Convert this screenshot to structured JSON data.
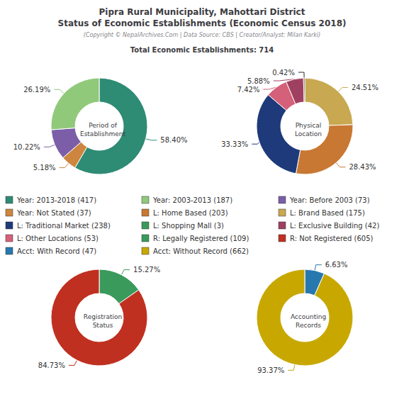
{
  "title": "Pipra Rural Municipality, Mahottari District\nStatus of Economic Establishments (Economic Census 2018)",
  "subtitle": "(Copyright © NepalArchives.Com | Data Source: CBS | Creator/Analyst: Milan Karki)",
  "annotations": [
    "Total Economic Establishments: 714"
  ],
  "legend_items": [
    [
      {
        "label": "Year: 2013-2018 (417)",
        "color": "#2e8b74"
      },
      {
        "label": "Year: Not Stated (37)",
        "color": "#cd853f"
      },
      {
        "label": "L: Traditional Market (238)",
        "color": "#1e3a7a"
      },
      {
        "label": "L: Other Locations (53)",
        "color": "#d4607a"
      },
      {
        "label": "Acct: With Record (47)",
        "color": "#2878b0"
      }
    ],
    [
      {
        "label": "Year: 2003-2013 (187)",
        "color": "#90c97a"
      },
      {
        "label": "L: Home Based (203)",
        "color": "#c87832"
      },
      {
        "label": "L: Shopping Mall (3)",
        "color": "#3a9a5c"
      },
      {
        "label": "R: Legally Registered (109)",
        "color": "#3a9a5c"
      },
      {
        "label": "Acct: Without Record (662)",
        "color": "#c8a800"
      }
    ],
    [
      {
        "label": "Year: Before 2003 (73)",
        "color": "#7b5ea7"
      },
      {
        "label": "L: Brand Based (175)",
        "color": "#c8a850"
      },
      {
        "label": "L: Exclusive Building (42)",
        "color": "#a04060"
      },
      {
        "label": "R: Not Registered (605)",
        "color": "#c03020"
      }
    ]
  ],
  "chart_data": [
    {
      "type": "pie",
      "title": "Period of\nEstablishment",
      "values": [
        58.4,
        5.18,
        10.22,
        26.19
      ],
      "value_labels": [
        "58.40%",
        "5.18%",
        "10.22%",
        "26.19%"
      ],
      "colors": [
        "#2e8b74",
        "#cd853f",
        "#7b5ea7",
        "#90c97a"
      ],
      "data_labels": true
    },
    {
      "type": "pie",
      "title": "Physical\nLocation",
      "values": [
        24.51,
        28.43,
        33.33,
        7.42,
        5.88,
        0.42
      ],
      "value_labels": [
        "24.51%",
        "28.43%",
        "33.33%",
        "7.42%",
        "5.88%",
        "0.42%"
      ],
      "colors": [
        "#c8a850",
        "#c87832",
        "#1e3a7a",
        "#d4607a",
        "#a04060",
        "#2a2a2a"
      ],
      "data_labels": true
    },
    {
      "type": "pie",
      "title": "Registration\nStatus",
      "values": [
        15.27,
        84.73
      ],
      "value_labels": [
        "15.27%",
        "84.73%"
      ],
      "colors": [
        "#3a9a5c",
        "#c03020"
      ],
      "data_labels": true
    },
    {
      "type": "pie",
      "title": "Accounting\nRecords",
      "values": [
        6.63,
        93.37
      ],
      "value_labels": [
        "6.63%",
        "93.37%"
      ],
      "colors": [
        "#2878b0",
        "#c8a800"
      ],
      "data_labels": true
    }
  ]
}
